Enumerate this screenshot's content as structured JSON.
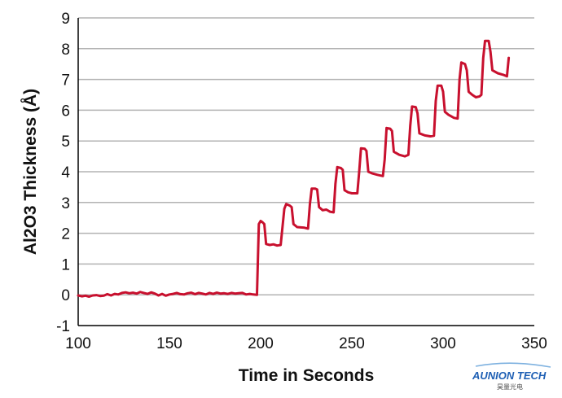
{
  "chart_data": {
    "type": "line",
    "title": "",
    "xlabel": "Time in Seconds",
    "ylabel": "Al2O3 Thickness (Å)",
    "xlim": [
      100,
      350
    ],
    "ylim": [
      -1,
      9
    ],
    "x_ticks": [
      100,
      150,
      200,
      250,
      300,
      350
    ],
    "y_ticks": [
      -1,
      0,
      1,
      2,
      3,
      4,
      5,
      6,
      7,
      8,
      9
    ],
    "grid": "horizontal",
    "legend": "none",
    "series": [
      {
        "color": "#c8102e",
        "points": [
          [
            100,
            -0.02
          ],
          [
            102,
            -0.05
          ],
          [
            104,
            -0.03
          ],
          [
            106,
            -0.06
          ],
          [
            108,
            -0.02
          ],
          [
            110,
            -0.01
          ],
          [
            112,
            -0.04
          ],
          [
            114,
            -0.03
          ],
          [
            116,
            0.02
          ],
          [
            118,
            -0.02
          ],
          [
            120,
            0.03
          ],
          [
            122,
            0.01
          ],
          [
            124,
            0.06
          ],
          [
            126,
            0.08
          ],
          [
            128,
            0.05
          ],
          [
            130,
            0.07
          ],
          [
            132,
            0.04
          ],
          [
            134,
            0.09
          ],
          [
            136,
            0.06
          ],
          [
            138,
            0.03
          ],
          [
            140,
            0.08
          ],
          [
            142,
            0.04
          ],
          [
            144,
            -0.02
          ],
          [
            146,
            0.03
          ],
          [
            148,
            -0.03
          ],
          [
            150,
            0.01
          ],
          [
            152,
            0.03
          ],
          [
            154,
            0.06
          ],
          [
            156,
            0.02
          ],
          [
            158,
            0.01
          ],
          [
            160,
            0.05
          ],
          [
            162,
            0.07
          ],
          [
            164,
            0.02
          ],
          [
            166,
            0.06
          ],
          [
            168,
            0.04
          ],
          [
            170,
            0.01
          ],
          [
            172,
            0.06
          ],
          [
            174,
            0.03
          ],
          [
            176,
            0.07
          ],
          [
            178,
            0.04
          ],
          [
            180,
            0.05
          ],
          [
            182,
            0.03
          ],
          [
            184,
            0.06
          ],
          [
            186,
            0.04
          ],
          [
            188,
            0.05
          ],
          [
            190,
            0.06
          ],
          [
            192,
            0.01
          ],
          [
            194,
            0.03
          ],
          [
            196,
            0.01
          ],
          [
            198,
            0.0
          ],
          [
            199,
            2.3
          ],
          [
            200,
            2.4
          ],
          [
            201,
            2.36
          ],
          [
            202,
            2.3
          ],
          [
            203,
            1.65
          ],
          [
            205,
            1.62
          ],
          [
            207,
            1.64
          ],
          [
            209,
            1.6
          ],
          [
            211,
            1.62
          ],
          [
            213,
            2.8
          ],
          [
            214,
            2.95
          ],
          [
            216,
            2.9
          ],
          [
            217,
            2.85
          ],
          [
            218,
            2.3
          ],
          [
            220,
            2.2
          ],
          [
            224,
            2.18
          ],
          [
            226,
            2.15
          ],
          [
            227,
            2.95
          ],
          [
            228,
            3.45
          ],
          [
            230,
            3.45
          ],
          [
            231,
            3.42
          ],
          [
            232,
            2.85
          ],
          [
            234,
            2.75
          ],
          [
            236,
            2.77
          ],
          [
            238,
            2.7
          ],
          [
            240,
            2.68
          ],
          [
            241,
            3.6
          ],
          [
            242,
            4.15
          ],
          [
            244,
            4.12
          ],
          [
            245,
            4.06
          ],
          [
            246,
            3.4
          ],
          [
            248,
            3.33
          ],
          [
            250,
            3.3
          ],
          [
            253,
            3.3
          ],
          [
            254,
            4.0
          ],
          [
            255,
            4.76
          ],
          [
            257,
            4.75
          ],
          [
            258,
            4.68
          ],
          [
            259,
            4.0
          ],
          [
            261,
            3.95
          ],
          [
            264,
            3.9
          ],
          [
            267,
            3.86
          ],
          [
            268,
            4.4
          ],
          [
            269,
            5.42
          ],
          [
            271,
            5.4
          ],
          [
            272,
            5.32
          ],
          [
            273,
            4.65
          ],
          [
            276,
            4.55
          ],
          [
            279,
            4.5
          ],
          [
            281,
            4.55
          ],
          [
            282,
            5.5
          ],
          [
            283,
            6.12
          ],
          [
            285,
            6.1
          ],
          [
            286,
            5.9
          ],
          [
            287,
            5.25
          ],
          [
            290,
            5.18
          ],
          [
            293,
            5.15
          ],
          [
            295,
            5.17
          ],
          [
            296,
            6.3
          ],
          [
            297,
            6.8
          ],
          [
            299,
            6.8
          ],
          [
            300,
            6.6
          ],
          [
            301,
            5.95
          ],
          [
            303,
            5.85
          ],
          [
            306,
            5.75
          ],
          [
            308,
            5.73
          ],
          [
            309,
            7.0
          ],
          [
            310,
            7.55
          ],
          [
            312,
            7.5
          ],
          [
            313,
            7.3
          ],
          [
            314,
            6.6
          ],
          [
            316,
            6.5
          ],
          [
            318,
            6.42
          ],
          [
            320,
            6.45
          ],
          [
            321,
            6.5
          ],
          [
            322,
            7.7
          ],
          [
            323,
            8.25
          ],
          [
            325,
            8.25
          ],
          [
            326,
            7.9
          ],
          [
            327,
            7.3
          ],
          [
            330,
            7.2
          ],
          [
            333,
            7.15
          ],
          [
            335,
            7.1
          ],
          [
            336,
            7.7
          ]
        ]
      }
    ]
  },
  "logo": {
    "main": "AUNION TECH",
    "sub": "昊量光电"
  }
}
